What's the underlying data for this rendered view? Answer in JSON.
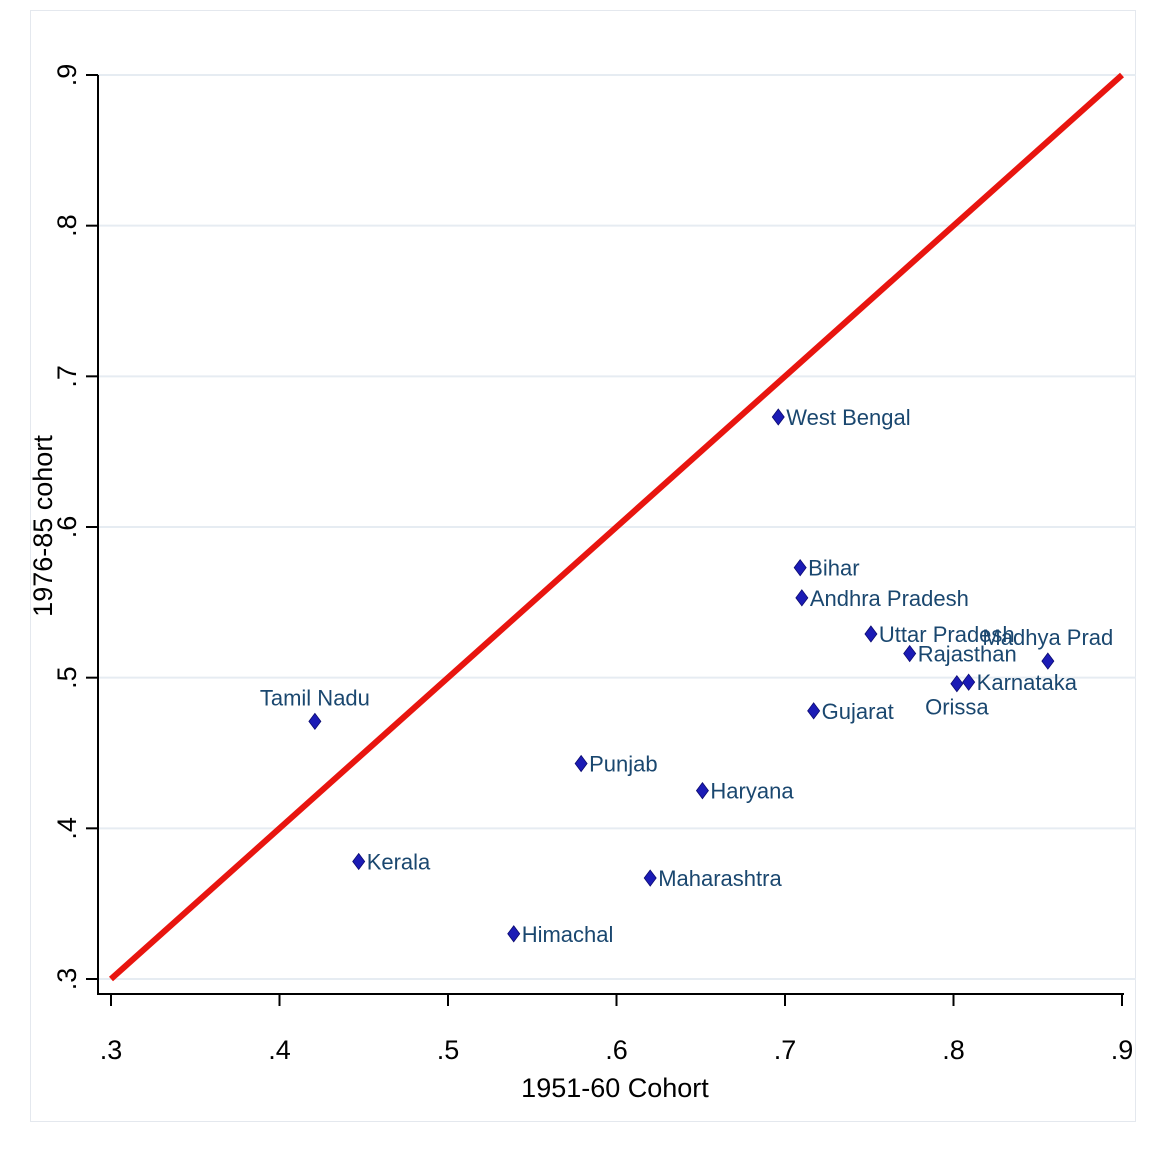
{
  "chart_data": {
    "type": "scatter",
    "xlabel": "1951-60 Cohort",
    "ylabel": "1976-85 cohort",
    "xlim": [
      0.3,
      0.9
    ],
    "ylim": [
      0.3,
      0.9
    ],
    "x_ticks": [
      {
        "value": 0.3,
        "label": ".3"
      },
      {
        "value": 0.4,
        "label": ".4"
      },
      {
        "value": 0.5,
        "label": ".5"
      },
      {
        "value": 0.6,
        "label": ".6"
      },
      {
        "value": 0.7,
        "label": ".7"
      },
      {
        "value": 0.8,
        "label": ".8"
      },
      {
        "value": 0.9,
        "label": ".9"
      }
    ],
    "y_ticks": [
      {
        "value": 0.3,
        "label": ".3"
      },
      {
        "value": 0.4,
        "label": ".4"
      },
      {
        "value": 0.5,
        "label": ".5"
      },
      {
        "value": 0.6,
        "label": ".6"
      },
      {
        "value": 0.7,
        "label": ".7"
      },
      {
        "value": 0.8,
        "label": ".8"
      },
      {
        "value": 0.9,
        "label": ".9"
      }
    ],
    "grid": "horizontal",
    "reference_line": {
      "from": [
        0.3,
        0.3
      ],
      "to": [
        0.9,
        0.9
      ],
      "color": "#e8150f"
    },
    "marker_color": "#1b1bb5",
    "label_color": "#1a476f",
    "points": [
      {
        "label": "West Bengal",
        "x": 0.696,
        "y": 0.673,
        "label_pos": "right"
      },
      {
        "label": "Bihar",
        "x": 0.709,
        "y": 0.573,
        "label_pos": "right"
      },
      {
        "label": "Andhra Pradesh",
        "x": 0.71,
        "y": 0.553,
        "label_pos": "right"
      },
      {
        "label": "Uttar Pradesh",
        "x": 0.751,
        "y": 0.529,
        "label_pos": "right"
      },
      {
        "label": "Rajasthan",
        "x": 0.774,
        "y": 0.516,
        "label_pos": "right"
      },
      {
        "label": "Madhya Prad",
        "x": 0.856,
        "y": 0.511,
        "label_pos": "above"
      },
      {
        "label": "Orissa",
        "x": 0.802,
        "y": 0.496,
        "label_pos": "below"
      },
      {
        "label": "Karnataka",
        "x": 0.809,
        "y": 0.497,
        "label_pos": "right"
      },
      {
        "label": "Gujarat",
        "x": 0.717,
        "y": 0.478,
        "label_pos": "right"
      },
      {
        "label": "Tamil Nadu",
        "x": 0.421,
        "y": 0.471,
        "label_pos": "above"
      },
      {
        "label": "Punjab",
        "x": 0.579,
        "y": 0.443,
        "label_pos": "right"
      },
      {
        "label": "Haryana",
        "x": 0.651,
        "y": 0.425,
        "label_pos": "right"
      },
      {
        "label": "Kerala",
        "x": 0.447,
        "y": 0.378,
        "label_pos": "right"
      },
      {
        "label": "Maharashtra",
        "x": 0.62,
        "y": 0.367,
        "label_pos": "right"
      },
      {
        "label": "Himachal",
        "x": 0.539,
        "y": 0.33,
        "label_pos": "right"
      }
    ]
  }
}
